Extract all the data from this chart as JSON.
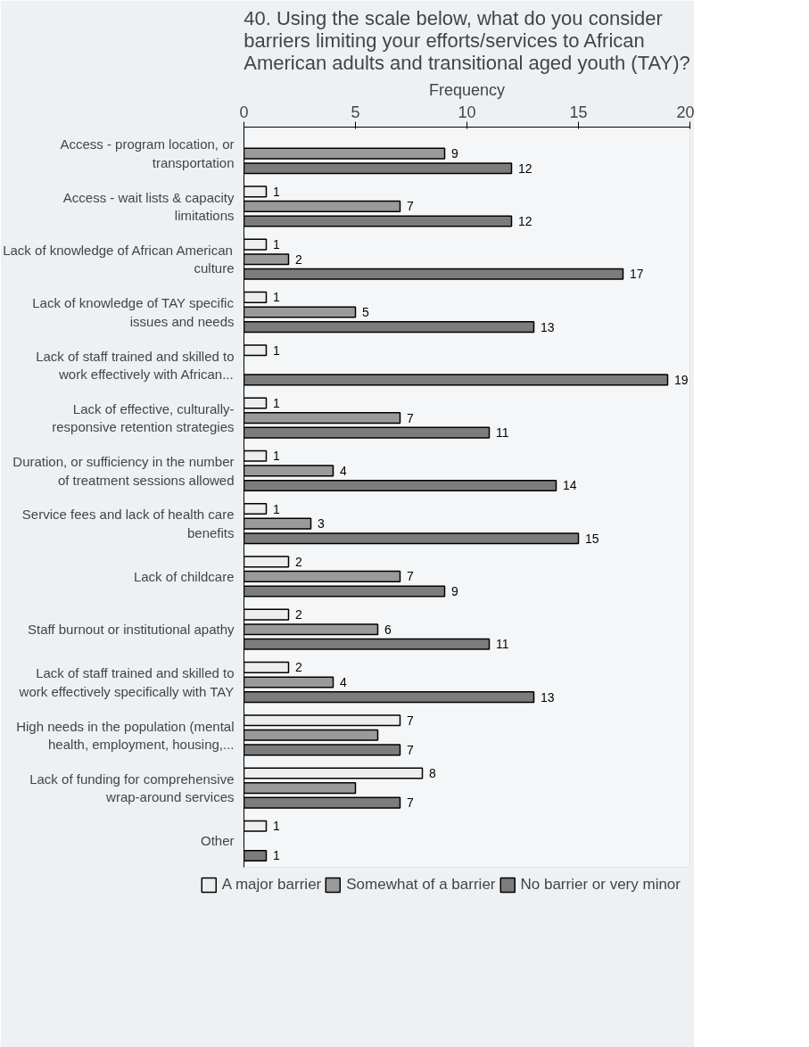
{
  "chart_data": {
    "type": "bar",
    "orientation": "horizontal",
    "title": "40. Using the scale below, what do you consider barriers limiting your efforts/services to African American adults and transitional aged youth (TAY)?",
    "xlabel": "Frequency",
    "categories": [
      "Access - program location, or transportation",
      "Access - wait lists & capacity limitations",
      "Lack of knowledge of African American culture",
      "Lack of knowledge of TAY specific issues and needs",
      "Lack of staff trained and skilled to work effectively with African...",
      "Lack of effective, culturally-responsive retention strategies",
      "Duration, or sufficiency in the number of treatment sessions allowed",
      "Service fees and lack of health care benefits",
      "Lack of childcare",
      "Staff burnout or institutional apathy",
      "Lack of staff trained and skilled to work effectively specifically with TAY",
      "High needs in the population (mental health, employment, housing,...",
      "Lack of funding for comprehensive wrap-around services",
      "Other"
    ],
    "series": [
      {
        "name": "A major barrier",
        "color": "#eeeeee",
        "values": [
          null,
          1,
          1,
          1,
          1,
          1,
          1,
          1,
          2,
          2,
          2,
          7,
          8,
          1
        ],
        "value_labels": [
          null,
          "1",
          "1",
          "1",
          "1",
          "1",
          "1",
          "1",
          "2",
          "2",
          "2",
          "7",
          "8",
          "1"
        ]
      },
      {
        "name": "Somewhat of a barrier",
        "color": "#9a9a9a",
        "values": [
          9,
          7,
          2,
          5,
          null,
          7,
          4,
          3,
          7,
          6,
          4,
          6,
          5,
          null
        ],
        "value_labels": [
          "9",
          "7",
          "2",
          "5",
          null,
          "7",
          "4",
          "3",
          "7",
          "6",
          "4",
          null,
          null,
          null
        ]
      },
      {
        "name": "No barrier or very minor",
        "color": "#7c7c7c",
        "values": [
          12,
          12,
          17,
          13,
          19,
          11,
          14,
          15,
          9,
          11,
          13,
          7,
          7,
          1
        ],
        "value_labels": [
          "12",
          "12",
          "17",
          "13",
          "19",
          "11",
          "14",
          "15",
          "9",
          "11",
          "13",
          "7",
          "7",
          "1"
        ]
      }
    ],
    "xlim": [
      0,
      20
    ],
    "xticks": [
      0,
      5,
      10,
      15,
      20
    ],
    "grid": false,
    "legend": "bottom"
  }
}
